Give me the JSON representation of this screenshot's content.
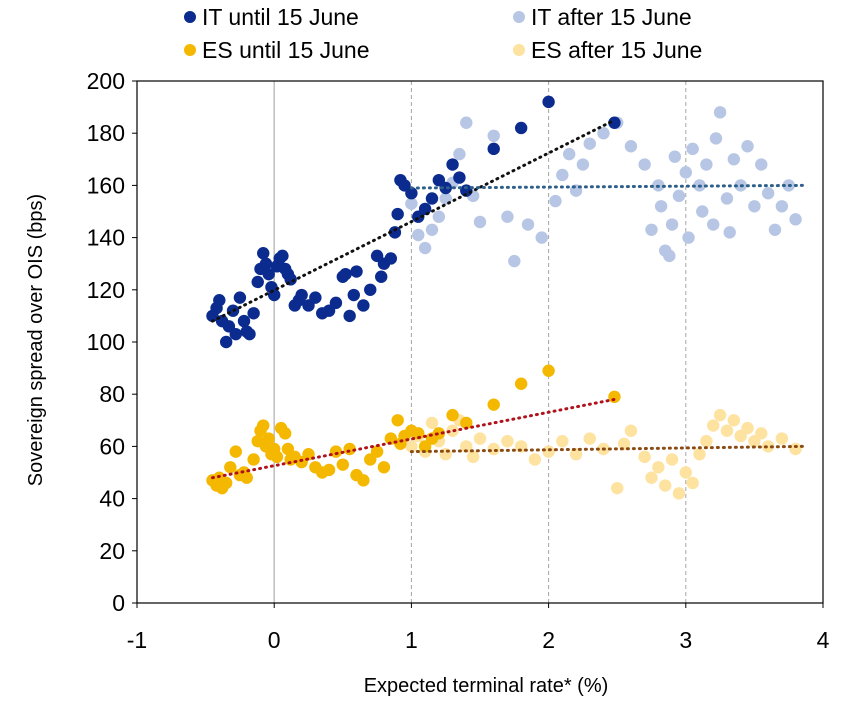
{
  "chart_data": {
    "type": "scatter",
    "title": "",
    "xlabel": "Expected terminal rate* (%)",
    "ylabel": "Sovereign spread over OIS (bps)",
    "xlim": [
      -1,
      4
    ],
    "ylim": [
      0,
      200
    ],
    "x_ticks": [
      -1,
      0,
      1,
      2,
      3,
      4
    ],
    "y_ticks": [
      0,
      20,
      40,
      60,
      80,
      100,
      120,
      140,
      160,
      180,
      200
    ],
    "grid": "vertical dashed at x=1,2,3; solid gray at x=0",
    "legend_position": "top",
    "series": [
      {
        "name": "IT until 15 June",
        "color": "#0b2b8f",
        "points": [
          [
            -0.45,
            110
          ],
          [
            -0.42,
            113
          ],
          [
            -0.4,
            116
          ],
          [
            -0.38,
            108
          ],
          [
            -0.35,
            100
          ],
          [
            -0.33,
            106
          ],
          [
            -0.3,
            112
          ],
          [
            -0.28,
            103
          ],
          [
            -0.25,
            117
          ],
          [
            -0.22,
            108
          ],
          [
            -0.2,
            104
          ],
          [
            -0.18,
            103
          ],
          [
            -0.15,
            111
          ],
          [
            -0.12,
            123
          ],
          [
            -0.1,
            128
          ],
          [
            -0.08,
            134
          ],
          [
            -0.06,
            130
          ],
          [
            -0.04,
            126
          ],
          [
            -0.02,
            121
          ],
          [
            0.0,
            118
          ],
          [
            0.02,
            129
          ],
          [
            0.04,
            132
          ],
          [
            0.06,
            133
          ],
          [
            0.08,
            128
          ],
          [
            0.1,
            126
          ],
          [
            0.12,
            124
          ],
          [
            0.15,
            114
          ],
          [
            0.18,
            116
          ],
          [
            0.2,
            118
          ],
          [
            0.25,
            114
          ],
          [
            0.3,
            117
          ],
          [
            0.35,
            111
          ],
          [
            0.4,
            112
          ],
          [
            0.45,
            115
          ],
          [
            0.5,
            125
          ],
          [
            0.52,
            126
          ],
          [
            0.55,
            110
          ],
          [
            0.58,
            118
          ],
          [
            0.6,
            127
          ],
          [
            0.65,
            114
          ],
          [
            0.7,
            120
          ],
          [
            0.75,
            133
          ],
          [
            0.78,
            125
          ],
          [
            0.8,
            130
          ],
          [
            0.85,
            132
          ],
          [
            0.88,
            142
          ],
          [
            0.9,
            149
          ],
          [
            0.92,
            162
          ],
          [
            0.95,
            160
          ],
          [
            1.0,
            157
          ],
          [
            1.05,
            148
          ],
          [
            1.1,
            151
          ],
          [
            1.15,
            155
          ],
          [
            1.2,
            162
          ],
          [
            1.25,
            159
          ],
          [
            1.3,
            168
          ],
          [
            1.35,
            163
          ],
          [
            1.4,
            158
          ],
          [
            1.6,
            174
          ],
          [
            1.8,
            182
          ],
          [
            2.0,
            192
          ],
          [
            2.48,
            184
          ]
        ]
      },
      {
        "name": "IT after 15 June",
        "color": "#b7c6e4",
        "points": [
          [
            1.0,
            153
          ],
          [
            1.05,
            141
          ],
          [
            1.1,
            136
          ],
          [
            1.15,
            143
          ],
          [
            1.2,
            148
          ],
          [
            1.25,
            155
          ],
          [
            1.3,
            161
          ],
          [
            1.35,
            172
          ],
          [
            1.4,
            184
          ],
          [
            1.45,
            156
          ],
          [
            1.5,
            146
          ],
          [
            1.6,
            179
          ],
          [
            1.7,
            148
          ],
          [
            1.75,
            131
          ],
          [
            1.85,
            145
          ],
          [
            1.95,
            140
          ],
          [
            2.05,
            154
          ],
          [
            2.1,
            164
          ],
          [
            2.15,
            172
          ],
          [
            2.2,
            158
          ],
          [
            2.25,
            168
          ],
          [
            2.3,
            176
          ],
          [
            2.4,
            180
          ],
          [
            2.5,
            184
          ],
          [
            2.6,
            175
          ],
          [
            2.7,
            168
          ],
          [
            2.75,
            143
          ],
          [
            2.8,
            160
          ],
          [
            2.82,
            152
          ],
          [
            2.85,
            135
          ],
          [
            2.88,
            133
          ],
          [
            2.9,
            145
          ],
          [
            2.92,
            171
          ],
          [
            2.95,
            156
          ],
          [
            3.0,
            165
          ],
          [
            3.02,
            140
          ],
          [
            3.05,
            174
          ],
          [
            3.1,
            160
          ],
          [
            3.12,
            150
          ],
          [
            3.15,
            168
          ],
          [
            3.2,
            145
          ],
          [
            3.22,
            178
          ],
          [
            3.25,
            188
          ],
          [
            3.3,
            155
          ],
          [
            3.32,
            142
          ],
          [
            3.35,
            170
          ],
          [
            3.4,
            160
          ],
          [
            3.45,
            175
          ],
          [
            3.5,
            152
          ],
          [
            3.55,
            168
          ],
          [
            3.6,
            157
          ],
          [
            3.65,
            143
          ],
          [
            3.7,
            152
          ],
          [
            3.75,
            160
          ],
          [
            3.8,
            147
          ]
        ]
      },
      {
        "name": "ES until 15 June",
        "color": "#f5b800",
        "points": [
          [
            -0.45,
            47
          ],
          [
            -0.42,
            45
          ],
          [
            -0.4,
            48
          ],
          [
            -0.38,
            44
          ],
          [
            -0.35,
            46
          ],
          [
            -0.32,
            52
          ],
          [
            -0.28,
            58
          ],
          [
            -0.25,
            49
          ],
          [
            -0.22,
            50
          ],
          [
            -0.2,
            48
          ],
          [
            -0.15,
            55
          ],
          [
            -0.12,
            62
          ],
          [
            -0.1,
            66
          ],
          [
            -0.08,
            68
          ],
          [
            -0.06,
            60
          ],
          [
            -0.04,
            63
          ],
          [
            -0.02,
            57
          ],
          [
            0.0,
            59
          ],
          [
            0.02,
            56
          ],
          [
            0.05,
            67
          ],
          [
            0.08,
            65
          ],
          [
            0.1,
            59
          ],
          [
            0.12,
            55
          ],
          [
            0.15,
            56
          ],
          [
            0.2,
            54
          ],
          [
            0.25,
            57
          ],
          [
            0.3,
            52
          ],
          [
            0.35,
            50
          ],
          [
            0.4,
            51
          ],
          [
            0.45,
            58
          ],
          [
            0.5,
            53
          ],
          [
            0.55,
            59
          ],
          [
            0.6,
            49
          ],
          [
            0.65,
            47
          ],
          [
            0.7,
            55
          ],
          [
            0.75,
            58
          ],
          [
            0.8,
            52
          ],
          [
            0.85,
            63
          ],
          [
            0.9,
            70
          ],
          [
            0.92,
            61
          ],
          [
            0.95,
            64
          ],
          [
            1.0,
            66
          ],
          [
            1.05,
            65
          ],
          [
            1.1,
            60
          ],
          [
            1.15,
            63
          ],
          [
            1.2,
            65
          ],
          [
            1.3,
            72
          ],
          [
            1.4,
            69
          ],
          [
            1.6,
            76
          ],
          [
            1.8,
            84
          ],
          [
            2.0,
            89
          ],
          [
            2.48,
            79
          ]
        ]
      },
      {
        "name": "ES after 15 June",
        "color": "#fde2a0",
        "points": [
          [
            1.0,
            60
          ],
          [
            1.05,
            64
          ],
          [
            1.1,
            58
          ],
          [
            1.15,
            69
          ],
          [
            1.2,
            62
          ],
          [
            1.25,
            57
          ],
          [
            1.3,
            66
          ],
          [
            1.35,
            70
          ],
          [
            1.4,
            60
          ],
          [
            1.45,
            56
          ],
          [
            1.5,
            63
          ],
          [
            1.6,
            59
          ],
          [
            1.7,
            62
          ],
          [
            1.8,
            60
          ],
          [
            1.9,
            55
          ],
          [
            2.0,
            58
          ],
          [
            2.1,
            62
          ],
          [
            2.2,
            57
          ],
          [
            2.3,
            63
          ],
          [
            2.4,
            59
          ],
          [
            2.5,
            44
          ],
          [
            2.55,
            61
          ],
          [
            2.6,
            66
          ],
          [
            2.7,
            56
          ],
          [
            2.75,
            48
          ],
          [
            2.8,
            52
          ],
          [
            2.85,
            45
          ],
          [
            2.9,
            55
          ],
          [
            2.95,
            42
          ],
          [
            3.0,
            50
          ],
          [
            3.05,
            46
          ],
          [
            3.1,
            57
          ],
          [
            3.15,
            62
          ],
          [
            3.2,
            68
          ],
          [
            3.25,
            72
          ],
          [
            3.3,
            66
          ],
          [
            3.35,
            70
          ],
          [
            3.4,
            64
          ],
          [
            3.45,
            67
          ],
          [
            3.5,
            62
          ],
          [
            3.55,
            65
          ],
          [
            3.6,
            60
          ],
          [
            3.7,
            63
          ],
          [
            3.8,
            59
          ]
        ]
      }
    ],
    "trendlines": [
      {
        "series": "IT until 15 June",
        "color": "#111111",
        "from": [
          -0.45,
          108
        ],
        "to": [
          2.48,
          185
        ]
      },
      {
        "series": "IT after 15 June",
        "color": "#2e5f8a",
        "from": [
          1.0,
          159
        ],
        "to": [
          3.85,
          160
        ]
      },
      {
        "series": "ES until 15 June",
        "color": "#b0121b",
        "from": [
          -0.45,
          48
        ],
        "to": [
          2.48,
          78
        ]
      },
      {
        "series": "ES after 15 June",
        "color": "#8a4a12",
        "from": [
          1.0,
          58
        ],
        "to": [
          3.85,
          60
        ]
      }
    ]
  }
}
